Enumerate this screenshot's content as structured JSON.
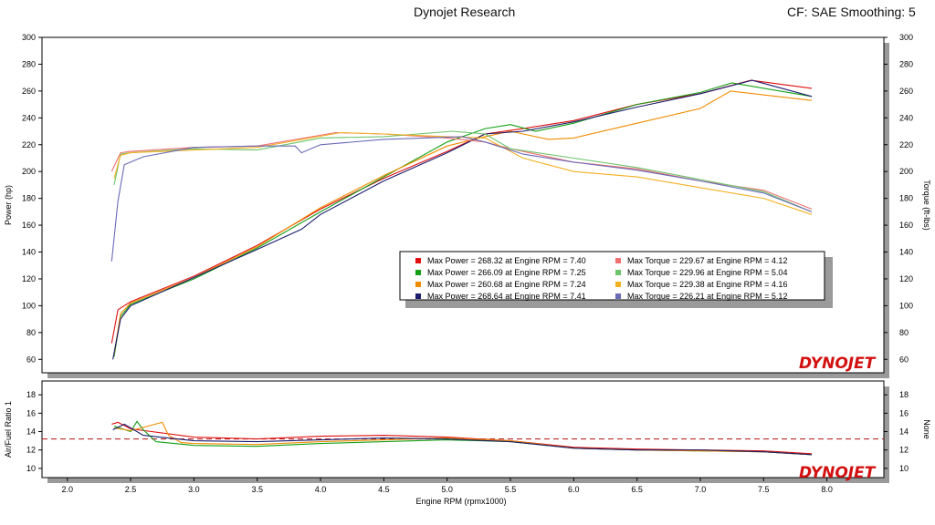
{
  "header": {
    "title": "Dynojet Research",
    "right": "CF: SAE Smoothing: 5"
  },
  "logo_text": "DYNOJET",
  "colors": {
    "run1": "#e01010",
    "run2": "#16a016",
    "run3": "#f08c00",
    "run4": "#1c1c6e",
    "tq1": "#f07070",
    "tq2": "#6cc46c",
    "tq3": "#f2b020",
    "tq4": "#6a6ab8",
    "ref": "#b01010"
  },
  "chart_data": [
    {
      "type": "line",
      "xlabel": "Engine RPM (rpmx1000)",
      "ylabel": "Power (hp)",
      "y2label": "Torque (ft-lbs)",
      "xlim": [
        1.8,
        8.45
      ],
      "ylim": [
        50,
        300
      ],
      "xticks": [
        "2.0",
        "2.5",
        "3.0",
        "3.5",
        "4.0",
        "4.5",
        "5.0",
        "5.5",
        "6.0",
        "6.5",
        "7.0",
        "7.5",
        "8.0"
      ],
      "yticks": [
        "60",
        "80",
        "100",
        "120",
        "140",
        "160",
        "180",
        "200",
        "220",
        "240",
        "260",
        "280",
        "300"
      ],
      "legend": [
        "Max Power = 268.32 at Engine RPM = 7.40",
        "Max Power = 266.09 at Engine RPM = 7.25",
        "Max Power = 260.68 at Engine RPM = 7.24",
        "Max Power = 268.64 at Engine RPM = 7.41",
        "Max Torque = 229.67 at Engine RPM = 4.12",
        "Max Torque = 229.96 at Engine RPM = 5.04",
        "Max Torque = 229.38 at Engine RPM = 4.16",
        "Max Torque = 226.21 at Engine RPM = 5.12"
      ],
      "series": [
        {
          "kind": "power",
          "x": [
            2.35,
            2.4,
            2.5,
            3.0,
            3.5,
            4.0,
            4.5,
            5.0,
            5.3,
            5.6,
            6.0,
            6.5,
            7.0,
            7.4,
            7.88
          ],
          "values": [
            72,
            97,
            103,
            122,
            145,
            172,
            195,
            215,
            228,
            232,
            238,
            250,
            258,
            268,
            262
          ]
        },
        {
          "kind": "power",
          "x": [
            2.37,
            2.42,
            2.5,
            3.0,
            3.5,
            4.0,
            4.5,
            5.0,
            5.3,
            5.5,
            5.7,
            6.0,
            6.5,
            7.0,
            7.25,
            7.88
          ],
          "values": [
            62,
            92,
            101,
            120,
            143,
            170,
            196,
            222,
            232,
            235,
            230,
            236,
            250,
            259,
            266,
            256
          ]
        },
        {
          "kind": "power",
          "x": [
            2.37,
            2.42,
            2.5,
            3.0,
            3.5,
            4.0,
            4.5,
            5.0,
            5.3,
            5.5,
            5.8,
            6.0,
            6.5,
            7.0,
            7.24,
            7.88
          ],
          "values": [
            64,
            94,
            102,
            121,
            144,
            173,
            197,
            219,
            226,
            230,
            224,
            225,
            236,
            247,
            260,
            253
          ]
        },
        {
          "kind": "power",
          "x": [
            2.36,
            2.42,
            2.5,
            3.0,
            3.5,
            3.85,
            4.0,
            4.5,
            5.0,
            5.3,
            5.6,
            6.0,
            6.5,
            7.0,
            7.41,
            7.88
          ],
          "values": [
            60,
            90,
            100,
            121,
            142,
            157,
            168,
            193,
            214,
            228,
            230,
            237,
            248,
            258,
            268,
            256
          ]
        },
        {
          "kind": "torque",
          "x": [
            2.35,
            2.42,
            2.5,
            3.0,
            3.5,
            4.12,
            4.5,
            5.0,
            5.3,
            5.5,
            6.0,
            6.5,
            7.0,
            7.5,
            7.88
          ],
          "values": [
            200,
            214,
            215,
            218,
            219,
            229,
            228,
            225,
            222,
            217,
            207,
            202,
            193,
            186,
            172
          ]
        },
        {
          "kind": "torque",
          "x": [
            2.37,
            2.42,
            2.5,
            3.0,
            3.5,
            4.0,
            4.5,
            5.04,
            5.3,
            5.5,
            6.0,
            6.5,
            7.0,
            7.5,
            7.88
          ],
          "values": [
            190,
            213,
            214,
            217,
            216,
            225,
            226,
            230,
            228,
            217,
            210,
            203,
            194,
            185,
            170
          ]
        },
        {
          "kind": "torque",
          "x": [
            2.37,
            2.42,
            2.5,
            3.0,
            3.5,
            4.16,
            4.5,
            5.0,
            5.3,
            5.6,
            6.0,
            6.5,
            7.0,
            7.5,
            7.88
          ],
          "values": [
            195,
            212,
            214,
            216,
            218,
            229,
            228,
            226,
            225,
            210,
            200,
            196,
            188,
            180,
            168
          ]
        },
        {
          "kind": "torque",
          "x": [
            2.35,
            2.4,
            2.45,
            2.6,
            3.0,
            3.5,
            3.8,
            3.85,
            4.0,
            4.5,
            5.12,
            5.3,
            5.6,
            6.0,
            6.5,
            7.0,
            7.5,
            7.88
          ],
          "values": [
            133,
            178,
            205,
            211,
            218,
            219,
            219,
            214,
            220,
            224,
            226,
            222,
            213,
            207,
            201,
            193,
            184,
            170
          ]
        }
      ]
    },
    {
      "type": "line",
      "xlabel": "Engine RPM (rpmx1000)",
      "ylabel": "Air/Fuel Ratio 1",
      "y2label": "None",
      "xlim": [
        1.8,
        8.45
      ],
      "ylim": [
        9,
        19.5
      ],
      "yticks": [
        "10",
        "12",
        "14",
        "16",
        "18"
      ],
      "reference_line": 13.2,
      "series": [
        {
          "x": [
            2.35,
            2.4,
            2.5,
            3.0,
            3.5,
            4.0,
            4.5,
            5.0,
            5.5,
            6.0,
            6.5,
            7.0,
            7.5,
            7.88
          ],
          "values": [
            14.8,
            15.0,
            14.3,
            13.4,
            13.2,
            13.5,
            13.6,
            13.4,
            13.0,
            12.3,
            12.1,
            12.0,
            11.9,
            11.6
          ]
        },
        {
          "x": [
            2.37,
            2.5,
            2.55,
            2.6,
            2.7,
            3.0,
            3.5,
            4.0,
            4.5,
            5.0,
            5.5,
            6.0,
            6.5,
            7.0,
            7.5,
            7.88
          ],
          "values": [
            14.6,
            14.0,
            15.1,
            14.2,
            12.9,
            12.5,
            12.4,
            12.7,
            12.9,
            13.1,
            12.9,
            12.2,
            12.0,
            11.9,
            11.8,
            11.5
          ]
        },
        {
          "x": [
            2.37,
            2.5,
            2.75,
            2.8,
            2.9,
            3.0,
            3.5,
            4.0,
            4.5,
            5.0,
            5.5,
            6.0,
            6.5,
            7.0,
            7.5,
            7.88
          ],
          "values": [
            14.4,
            14.1,
            15.0,
            13.6,
            12.8,
            12.7,
            12.6,
            12.9,
            13.1,
            13.3,
            13.0,
            12.2,
            12.0,
            11.9,
            11.8,
            11.5
          ]
        },
        {
          "x": [
            2.36,
            2.45,
            2.6,
            3.0,
            3.5,
            4.0,
            4.5,
            5.0,
            5.5,
            6.0,
            6.5,
            7.0,
            7.5,
            7.88
          ],
          "values": [
            14.2,
            14.8,
            13.6,
            13.0,
            12.9,
            13.1,
            13.3,
            13.2,
            12.9,
            12.2,
            12.0,
            12.0,
            11.8,
            11.5
          ]
        }
      ]
    }
  ]
}
